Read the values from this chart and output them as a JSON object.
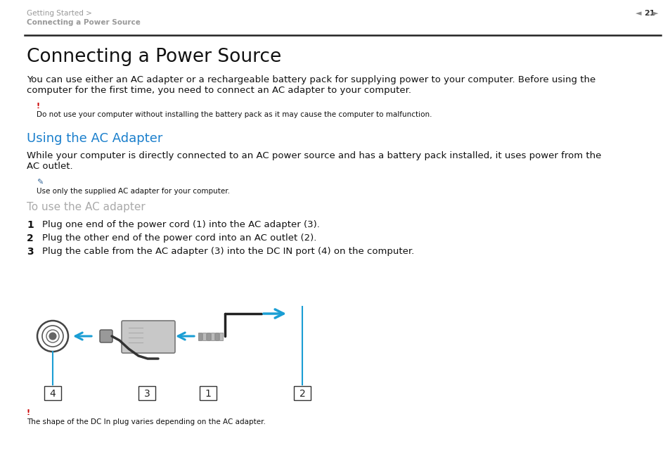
{
  "bg_color": "#ffffff",
  "header_text1": "Getting Started >",
  "header_text2": "Connecting a Power Source",
  "page_num": "21",
  "title": "Connecting a Power Source",
  "body1_line1": "You can use either an AC adapter or a rechargeable battery pack for supplying power to your computer. Before using the",
  "body1_line2": "computer for the first time, you need to connect an AC adapter to your computer.",
  "warn_symbol": "!",
  "warn_text": "Do not use your computer without installing the battery pack as it may cause the computer to malfunction.",
  "section_title": "Using the AC Adapter",
  "section_body_line1": "While your computer is directly connected to an AC power source and has a battery pack installed, it uses power from the",
  "section_body_line2": "AC outlet.",
  "note_text": "Use only the supplied AC adapter for your computer.",
  "sub_title": "To use the AC adapter",
  "step1": "Plug one end of the power cord (1) into the AC adapter (3).",
  "step2": "Plug the other end of the power cord into an AC outlet (2).",
  "step3": "Plug the cable from the AC adapter (3) into the DC IN port (4) on the computer.",
  "footer_warn": "!",
  "footer_text": "The shape of the DC In plug varies depending on the AC adapter.",
  "header_color": "#999999",
  "warn_color": "#cc0000",
  "section_color": "#1a7fcc",
  "sub_title_color": "#aaaaaa",
  "body_color": "#111111",
  "arrow_color": "#1a9ed4",
  "line_color": "#1a9ed4",
  "diagram_color": "#555555"
}
